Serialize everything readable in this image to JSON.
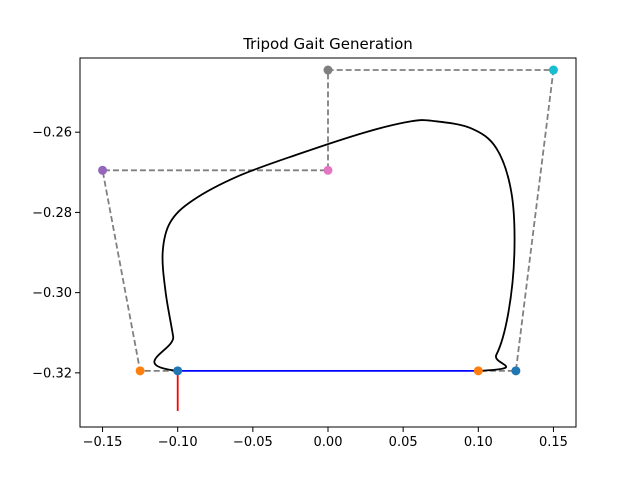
{
  "chart_data": {
    "type": "line",
    "title": "Tripod Gait Generation",
    "xlabel": "",
    "ylabel": "",
    "xlim": [
      -0.165,
      0.165
    ],
    "ylim": [
      -0.3335,
      -0.2415
    ],
    "xticks": [
      -0.15,
      -0.1,
      -0.05,
      0.0,
      0.05,
      0.1,
      0.15
    ],
    "xtick_labels": [
      "−0.15",
      "−0.10",
      "−0.05",
      "0.00",
      "0.05",
      "0.10",
      "0.15"
    ],
    "yticks": [
      -0.26,
      -0.28,
      -0.3,
      -0.32
    ],
    "ytick_labels": [
      "−0.26",
      "−0.28",
      "−0.30",
      "−0.32"
    ],
    "grid": false,
    "series": [
      {
        "role": "control-polygon",
        "style": "dashed",
        "color": "#808080",
        "points": [
          [
            -0.1,
            -0.3195
          ],
          [
            -0.125,
            -0.3195
          ],
          [
            -0.15,
            -0.2695
          ],
          [
            0.0,
            -0.2695
          ],
          [
            0.0,
            -0.2445
          ],
          [
            0.15,
            -0.2445
          ],
          [
            0.125,
            -0.3195
          ],
          [
            0.1,
            -0.3195
          ]
        ]
      },
      {
        "role": "gait-curve",
        "style": "solid",
        "color": "#000000",
        "points": [
          [
            0.1,
            -0.3195
          ],
          [
            0.112,
            -0.3155
          ],
          [
            0.12,
            -0.305
          ],
          [
            0.124,
            -0.29
          ],
          [
            0.122,
            -0.275
          ],
          [
            0.112,
            -0.264
          ],
          [
            0.095,
            -0.259
          ],
          [
            0.07,
            -0.2572
          ],
          [
            0.055,
            -0.2573
          ],
          [
            0.025,
            -0.26
          ],
          [
            -0.02,
            -0.2655
          ],
          [
            -0.06,
            -0.271
          ],
          [
            -0.09,
            -0.277
          ],
          [
            -0.105,
            -0.2825
          ],
          [
            -0.11,
            -0.29
          ],
          [
            -0.108,
            -0.3
          ],
          [
            -0.103,
            -0.311
          ],
          [
            -0.1,
            -0.3195
          ]
        ]
      },
      {
        "role": "stance-line",
        "style": "solid",
        "color": "#0000ff",
        "points": [
          [
            -0.1,
            -0.3195
          ],
          [
            0.1,
            -0.3195
          ]
        ]
      },
      {
        "role": "foot-marker",
        "style": "solid",
        "color": "#ff0000",
        "points": [
          [
            -0.1,
            -0.3195
          ],
          [
            -0.1,
            -0.3295
          ]
        ]
      }
    ],
    "control_points": [
      {
        "x": -0.1,
        "y": -0.3195,
        "color": "#1f77b4"
      },
      {
        "x": -0.125,
        "y": -0.3195,
        "color": "#ff7f0e"
      },
      {
        "x": -0.15,
        "y": -0.2695,
        "color": "#9467bd"
      },
      {
        "x": 0.0,
        "y": -0.2695,
        "color": "#e377c2"
      },
      {
        "x": 0.0,
        "y": -0.2445,
        "color": "#7f7f7f"
      },
      {
        "x": 0.15,
        "y": -0.2445,
        "color": "#17becf"
      },
      {
        "x": 0.125,
        "y": -0.3195,
        "color": "#1f77b4"
      },
      {
        "x": 0.1,
        "y": -0.3195,
        "color": "#ff7f0e"
      }
    ]
  }
}
